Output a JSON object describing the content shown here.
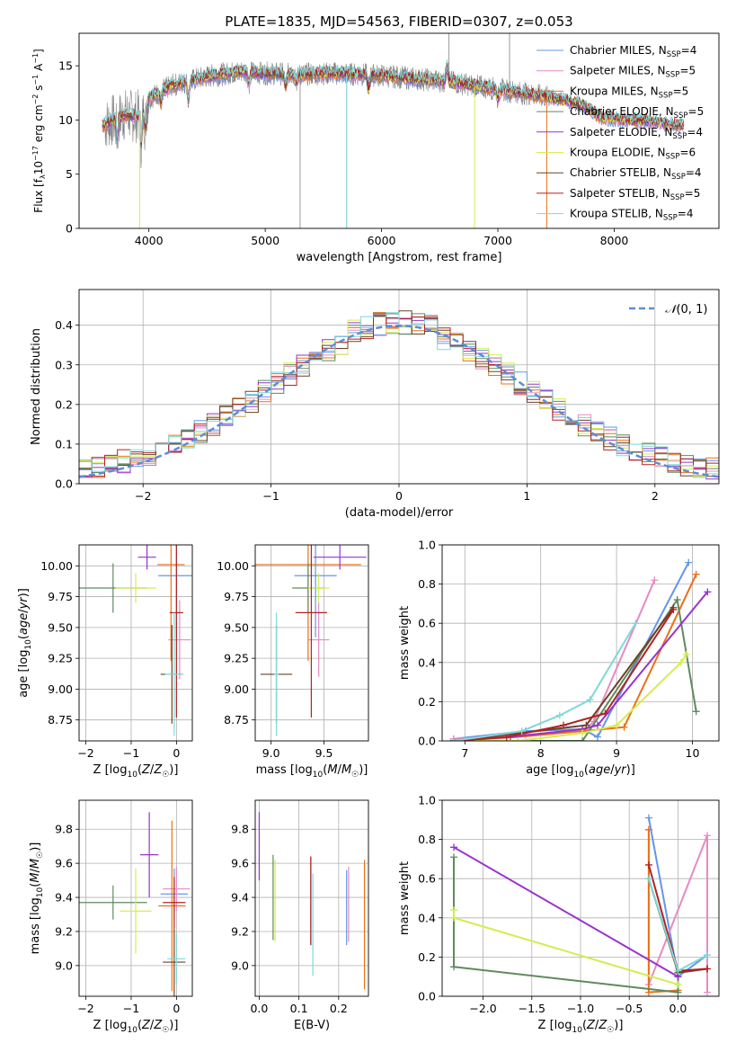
{
  "figure_title": "PLATE=1835, MJD=54563, FIBERID=0307, z=0.053",
  "colors": {
    "chabrier_miles": "#6495ed",
    "salpeter_miles": "#e78ac3",
    "kroupa_miles": "#ec7014",
    "chabrier_elodie": "#5f8a5f",
    "salpeter_elodie": "#9932cc",
    "kroupa_elodie": "#d4ed4f",
    "chabrier_stelib": "#6b4226",
    "salpeter_stelib": "#b22222",
    "kroupa_stelib": "#7fd8d8",
    "data": "#808080",
    "normal": "#5b8ed6"
  },
  "chart_data": [
    {
      "id": "spectrum",
      "type": "line",
      "xlabel": "wavelength [Angstrom, rest frame]",
      "ylabel": "Flux [fλ10⁻¹⁷ erg cm⁻² s⁻¹ A⁻¹]",
      "xlim": [
        3400,
        8900
      ],
      "ylim": [
        0,
        18
      ],
      "xticks": [
        4000,
        5000,
        6000,
        7000,
        8000
      ],
      "yticks": [
        0,
        5,
        10,
        15
      ],
      "grid": false,
      "legend_position": "top-right",
      "series": [
        {
          "name": "Chabrier MILES, N_SSP=4",
          "color_key": "chabrier_miles"
        },
        {
          "name": "Salpeter MILES, N_SSP=5",
          "color_key": "salpeter_miles"
        },
        {
          "name": "Kroupa MILES, N_SSP=5",
          "color_key": "kroupa_miles"
        },
        {
          "name": "Chabrier ELODIE, N_SSP=5",
          "color_key": "chabrier_elodie"
        },
        {
          "name": "Salpeter ELODIE, N_SSP=4",
          "color_key": "salpeter_elodie"
        },
        {
          "name": "Kroupa ELODIE, N_SSP=6",
          "color_key": "kroupa_elodie"
        },
        {
          "name": "Chabrier STELIB, N_SSP=4",
          "color_key": "chabrier_stelib"
        },
        {
          "name": "Salpeter STELIB, N_SSP=5",
          "color_key": "salpeter_stelib"
        },
        {
          "name": "Kroupa STELIB, N_SSP=4",
          "color_key": "kroupa_stelib"
        }
      ],
      "legend_labels": [
        {
          "pre": "Chabrier MILES, N",
          "sub": "SSP",
          "post": "=4"
        },
        {
          "pre": "Salpeter MILES, N",
          "sub": "SSP",
          "post": "=5"
        },
        {
          "pre": "Kroupa MILES, N",
          "sub": "SSP",
          "post": "=5"
        },
        {
          "pre": "Chabrier ELODIE, N",
          "sub": "SSP",
          "post": "=5"
        },
        {
          "pre": "Salpeter ELODIE, N",
          "sub": "SSP",
          "post": "=4"
        },
        {
          "pre": "Kroupa ELODIE, N",
          "sub": "SSP",
          "post": "=6"
        },
        {
          "pre": "Chabrier STELIB, N",
          "sub": "SSP",
          "post": "=4"
        },
        {
          "pre": "Salpeter STELIB, N",
          "sub": "SSP",
          "post": "=5"
        },
        {
          "pre": "Kroupa STELIB, N",
          "sub": "SSP",
          "post": "=4"
        }
      ],
      "continuum": [
        [
          3600,
          9.5
        ],
        [
          3700,
          10
        ],
        [
          3800,
          10.5
        ],
        [
          3900,
          10.3
        ],
        [
          4000,
          12
        ],
        [
          4200,
          13.2
        ],
        [
          4500,
          14
        ],
        [
          4800,
          14.5
        ],
        [
          5000,
          14.3
        ],
        [
          5300,
          14.2
        ],
        [
          5600,
          14.3
        ],
        [
          6000,
          14.1
        ],
        [
          6300,
          13.8
        ],
        [
          6600,
          13.5
        ],
        [
          6900,
          13
        ],
        [
          7200,
          12.5
        ],
        [
          7500,
          12
        ],
        [
          7700,
          11.5
        ],
        [
          7900,
          10.2
        ],
        [
          8100,
          10
        ],
        [
          8300,
          9.9
        ],
        [
          8600,
          9.5
        ]
      ],
      "model_range": [
        3600,
        8600
      ],
      "data_range": [
        3620,
        7450
      ]
    },
    {
      "id": "residuals",
      "type": "histogram",
      "xlabel": "(data-model)/error",
      "ylabel": "Normed distribution",
      "xlim": [
        -2.5,
        2.5
      ],
      "ylim": [
        0,
        0.49
      ],
      "xticks": [
        -2,
        -1,
        0,
        1,
        2
      ],
      "yticks": [
        0.0,
        0.1,
        0.2,
        0.3,
        0.4
      ],
      "grid": true,
      "legend_position": "top-right",
      "legend_label": "N(0,1)",
      "bin_width": 0.1,
      "series_color_keys": [
        "chabrier_miles",
        "salpeter_miles",
        "kroupa_miles",
        "chabrier_elodie",
        "salpeter_elodie",
        "kroupa_elodie",
        "chabrier_stelib",
        "salpeter_stelib",
        "kroupa_stelib"
      ]
    },
    {
      "id": "age_vs_Z",
      "type": "scatter",
      "xlabel": "Z [log10(Z/Z☉)]",
      "ylabel": "age [log10(age/yr)]",
      "xlim": [
        -2.15,
        0.35
      ],
      "ylim": [
        8.58,
        10.17
      ],
      "xticks": [
        -2,
        -1,
        0
      ],
      "yticks": [
        8.75,
        9.0,
        9.25,
        9.5,
        9.75,
        10.0
      ],
      "grid": true,
      "points": [
        {
          "c": "chabrier_miles",
          "x": 0,
          "xerr": 0.4,
          "y": 9.92,
          "yerr": 0.5
        },
        {
          "c": "salpeter_miles",
          "x": 0.07,
          "xerr": 0.25,
          "y": 9.4,
          "yerr": 0.32
        },
        {
          "c": "kroupa_miles",
          "x": -0.12,
          "xerr": 0.3,
          "y": 10.01,
          "yerr": 0.78
        },
        {
          "c": "chabrier_elodie",
          "x": -1.4,
          "xerr": 0.75,
          "y": 9.82,
          "yerr": 0.2
        },
        {
          "c": "salpeter_elodie",
          "x": -0.65,
          "xerr": 0.2,
          "y": 10.07,
          "yerr": 0.1
        },
        {
          "c": "kroupa_elodie",
          "x": -0.9,
          "xerr": 0.45,
          "y": 9.82,
          "yerr": 0.12
        },
        {
          "c": "chabrier_stelib",
          "x": -0.1,
          "xerr": 0.25,
          "y": 9.12,
          "yerr": 0.4
        },
        {
          "c": "salpeter_stelib",
          "x": 0.0,
          "xerr": 0.15,
          "y": 9.62,
          "yerr": 0.85
        },
        {
          "c": "kroupa_stelib",
          "x": -0.05,
          "xerr": 0.2,
          "y": 9.12,
          "yerr": 0.5
        }
      ]
    },
    {
      "id": "age_vs_mass",
      "type": "scatter",
      "xlabel": "mass [log10(M/M☉)]",
      "ylabel": "",
      "xlim": [
        8.85,
        9.92
      ],
      "ylim": [
        8.58,
        10.17
      ],
      "xticks": [
        9.0,
        9.5
      ],
      "yticks": [
        8.75,
        9.0,
        9.25,
        9.5,
        9.75,
        10.0
      ],
      "grid": true,
      "points": [
        {
          "c": "chabrier_miles",
          "x": 9.42,
          "xerr": 0.2,
          "y": 9.92,
          "yerr": 0.5
        },
        {
          "c": "salpeter_miles",
          "x": 9.45,
          "xerr": 0.1,
          "y": 9.4,
          "yerr": 0.3
        },
        {
          "c": "kroupa_miles",
          "x": 9.35,
          "xerr": 0.5,
          "y": 10.01,
          "yerr": 0.78
        },
        {
          "c": "chabrier_elodie",
          "x": 9.35,
          "xerr": 0.15,
          "y": 9.82,
          "yerr": 0.2
        },
        {
          "c": "salpeter_elodie",
          "x": 9.65,
          "xerr": 0.25,
          "y": 10.07,
          "yerr": 0.1
        },
        {
          "c": "kroupa_elodie",
          "x": 9.45,
          "xerr": 0.1,
          "y": 9.82,
          "yerr": 0.12
        },
        {
          "c": "chabrier_stelib",
          "x": 9.05,
          "xerr": 0.15,
          "y": 9.12,
          "yerr": 0.4
        },
        {
          "c": "salpeter_stelib",
          "x": 9.38,
          "xerr": 0.15,
          "y": 9.62,
          "yerr": 0.85
        },
        {
          "c": "kroupa_stelib",
          "x": 9.05,
          "xerr": 0.02,
          "y": 9.12,
          "yerr": 0.5
        }
      ]
    },
    {
      "id": "mass_weight_vs_age",
      "type": "line",
      "xlabel": "age [log10(age/yr)]",
      "ylabel": "mass weight",
      "xlim": [
        6.7,
        10.35
      ],
      "ylim": [
        0,
        1
      ],
      "xticks": [
        7,
        8,
        9,
        10
      ],
      "yticks": [
        0.0,
        0.2,
        0.4,
        0.6,
        0.8,
        1.0
      ],
      "grid": true,
      "series": [
        {
          "c": "chabrier_miles",
          "x": [
            6.85,
            7.8,
            8.55,
            8.75,
            9.95
          ],
          "y": [
            0.01,
            0.05,
            0.06,
            0.02,
            0.91
          ]
        },
        {
          "c": "salpeter_miles",
          "x": [
            6.85,
            7.8,
            8.6,
            8.7,
            9.5
          ],
          "y": [
            0.01,
            0.03,
            0.06,
            0.1,
            0.82
          ]
        },
        {
          "c": "kroupa_miles",
          "x": [
            6.85,
            7.7,
            8.55,
            9.1,
            10.05
          ],
          "y": [
            0.0,
            0.02,
            0.05,
            0.07,
            0.85
          ]
        },
        {
          "c": "chabrier_elodie",
          "x": [
            6.85,
            8.55,
            9.8,
            10.05
          ],
          "y": [
            0.0,
            0.0,
            0.72,
            0.15
          ]
        },
        {
          "c": "salpeter_elodie",
          "x": [
            6.85,
            7.6,
            8.55,
            8.75,
            10.2
          ],
          "y": [
            0.0,
            0.02,
            0.06,
            0.08,
            0.76
          ]
        },
        {
          "c": "kroupa_elodie",
          "x": [
            6.85,
            7.7,
            8.55,
            9.0,
            9.85,
            9.92
          ],
          "y": [
            0.0,
            0.0,
            0.04,
            0.08,
            0.4,
            0.44
          ]
        },
        {
          "c": "chabrier_stelib",
          "x": [
            6.85,
            8.6,
            9.75
          ],
          "y": [
            0.0,
            0.08,
            0.68
          ]
        },
        {
          "c": "salpeter_stelib",
          "x": [
            6.85,
            7.55,
            8.3,
            8.85,
            9.75
          ],
          "y": [
            0.0,
            0.02,
            0.08,
            0.14,
            0.67
          ]
        },
        {
          "c": "kroupa_stelib",
          "x": [
            6.85,
            7.75,
            8.25,
            8.65,
            9.25
          ],
          "y": [
            0.0,
            0.05,
            0.13,
            0.21,
            0.6
          ]
        }
      ]
    },
    {
      "id": "mass_vs_Z",
      "type": "scatter",
      "xlabel": "Z [log10(Z/Z☉)]",
      "ylabel": "mass [log10(M/M☉)]",
      "xlim": [
        -2.15,
        0.35
      ],
      "ylim": [
        8.82,
        9.97
      ],
      "xticks": [
        -2,
        -1,
        0
      ],
      "yticks": [
        9.0,
        9.2,
        9.4,
        9.6,
        9.8
      ],
      "grid": true,
      "points": [
        {
          "c": "chabrier_miles",
          "x": -0.05,
          "xerr": 0.3,
          "y": 9.42,
          "yerr": 0.15
        },
        {
          "c": "salpeter_miles",
          "x": 0.0,
          "xerr": 0.3,
          "y": 9.45,
          "yerr": 0.13
        },
        {
          "c": "kroupa_miles",
          "x": -0.1,
          "xerr": 0.3,
          "y": 9.35,
          "yerr": 0.5
        },
        {
          "c": "chabrier_elodie",
          "x": -1.4,
          "xerr": 0.75,
          "y": 9.37,
          "yerr": 0.1
        },
        {
          "c": "salpeter_elodie",
          "x": -0.6,
          "xerr": 0.2,
          "y": 9.65,
          "yerr": 0.25
        },
        {
          "c": "kroupa_elodie",
          "x": -0.9,
          "xerr": 0.35,
          "y": 9.32,
          "yerr": 0.25
        },
        {
          "c": "chabrier_stelib",
          "x": -0.05,
          "xerr": 0.25,
          "y": 9.02,
          "yerr": 0.2
        },
        {
          "c": "salpeter_stelib",
          "x": -0.05,
          "xerr": 0.25,
          "y": 9.37,
          "yerr": 0.15
        },
        {
          "c": "kroupa_stelib",
          "x": 0.0,
          "xerr": 0.2,
          "y": 9.04,
          "yerr": 0.15
        }
      ]
    },
    {
      "id": "mass_vs_ebv",
      "type": "scatter",
      "xlabel": "E(B-V)",
      "ylabel": "",
      "xlim": [
        -0.01,
        0.275
      ],
      "ylim": [
        8.82,
        9.97
      ],
      "xticks": [
        0.0,
        0.1,
        0.2
      ],
      "yticks": [
        9.0,
        9.2,
        9.4,
        9.6,
        9.8
      ],
      "grid": true,
      "points": [
        {
          "c": "chabrier_miles",
          "x": 0.22,
          "y": 9.34,
          "yerr": 0.22
        },
        {
          "c": "salpeter_miles",
          "x": 0.225,
          "y": 9.36,
          "yerr": 0.22
        },
        {
          "c": "kroupa_miles",
          "x": 0.265,
          "y": 9.24,
          "yerr": 0.38
        },
        {
          "c": "chabrier_elodie",
          "x": 0.035,
          "y": 9.4,
          "yerr": 0.25
        },
        {
          "c": "salpeter_elodie",
          "x": 0.0,
          "y": 9.7,
          "yerr": 0.2
        },
        {
          "c": "kroupa_elodie",
          "x": 0.04,
          "y": 9.38,
          "yerr": 0.24
        },
        {
          "c": "chabrier_stelib",
          "x": 0.13,
          "y": 9.38,
          "yerr": 0.26
        },
        {
          "c": "salpeter_stelib",
          "x": 0.13,
          "y": 9.38,
          "yerr": 0.26
        },
        {
          "c": "kroupa_stelib",
          "x": 0.135,
          "y": 9.24,
          "yerr": 0.3
        }
      ]
    },
    {
      "id": "mass_weight_vs_Z",
      "type": "line",
      "xlabel": "Z [log10(Z/Z☉)]",
      "ylabel": "mass weight",
      "xlim": [
        -2.42,
        0.42
      ],
      "ylim": [
        0,
        1
      ],
      "xticks": [
        -2.0,
        -1.5,
        -1.0,
        -0.5,
        0.0
      ],
      "yticks": [
        0.0,
        0.2,
        0.4,
        0.6,
        0.8,
        1.0
      ],
      "grid": true,
      "series": [
        {
          "c": "chabrier_miles",
          "x": [
            -0.3,
            0.0,
            0.3
          ],
          "y": [
            0.91,
            0.1,
            0.21
          ]
        },
        {
          "c": "salpeter_miles",
          "x": [
            -0.3,
            -0.3,
            0.3,
            0.3
          ],
          "y": [
            0.85,
            0.06,
            0.82,
            0.02
          ]
        },
        {
          "c": "kroupa_miles",
          "x": [
            -0.3,
            -0.3,
            0.0
          ],
          "y": [
            0.85,
            0.02,
            0.03
          ]
        },
        {
          "c": "chabrier_elodie",
          "x": [
            -2.3,
            -2.3,
            0.0,
            0.0
          ],
          "y": [
            0.71,
            0.15,
            0.02,
            0.1
          ]
        },
        {
          "c": "salpeter_elodie",
          "x": [
            -2.3,
            0.0
          ],
          "y": [
            0.76,
            0.1
          ]
        },
        {
          "c": "kroupa_elodie",
          "x": [
            -2.3,
            -2.3,
            0.0
          ],
          "y": [
            0.44,
            0.4,
            0.06
          ]
        },
        {
          "c": "chabrier_stelib",
          "x": [
            -0.3,
            0.0,
            0.3
          ],
          "y": [
            0.6,
            0.12,
            0.14
          ]
        },
        {
          "c": "salpeter_stelib",
          "x": [
            -0.3,
            0.0,
            0.3
          ],
          "y": [
            0.67,
            0.13,
            0.14
          ]
        },
        {
          "c": "kroupa_stelib",
          "x": [
            -0.3,
            0.0,
            0.3
          ],
          "y": [
            0.6,
            0.13,
            0.21
          ]
        }
      ]
    }
  ]
}
